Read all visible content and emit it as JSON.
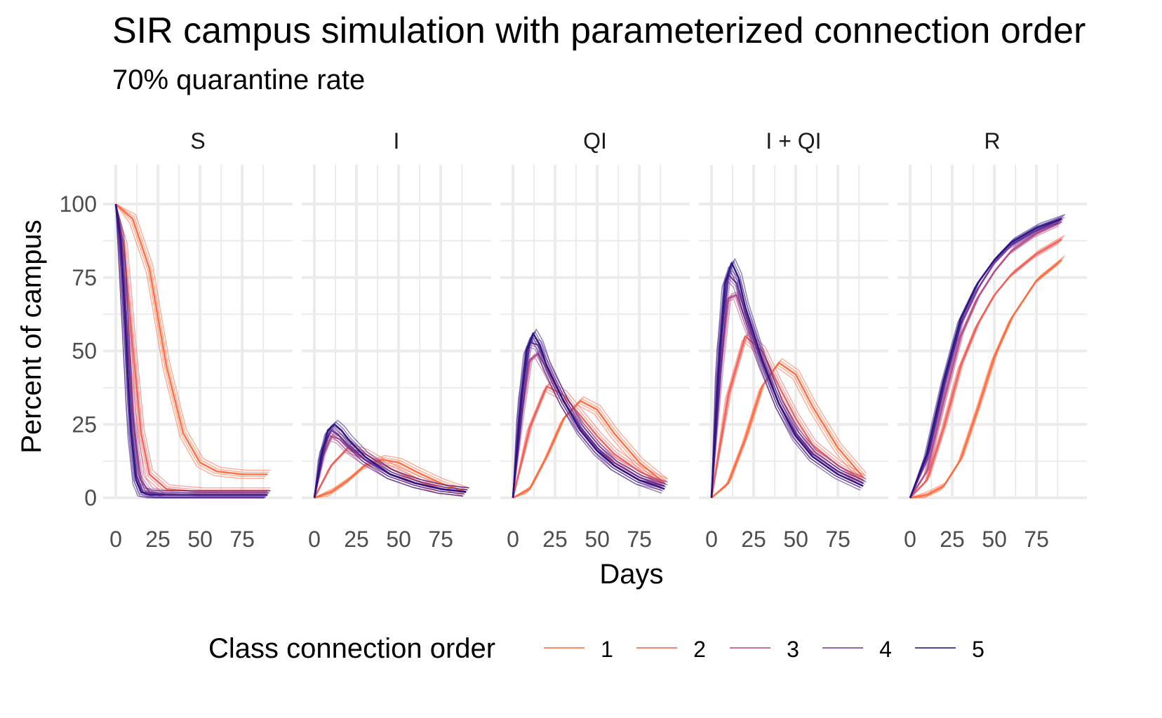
{
  "chart_data": {
    "type": "line",
    "title": "SIR campus simulation with parameterized connection order",
    "subtitle": "70% quarantine rate",
    "xlabel": "Days",
    "ylabel": "Percent of campus",
    "xlim": [
      0,
      90
    ],
    "ylim": [
      0,
      100
    ],
    "x_ticks": [
      "0",
      "25",
      "50",
      "75"
    ],
    "y_ticks": [
      "0",
      "25",
      "50",
      "75",
      "100"
    ],
    "grid": true,
    "facets": [
      "S",
      "I",
      "QI",
      "I + QI",
      "R"
    ],
    "legend": {
      "title": "Class connection order",
      "position": "bottom",
      "entries": [
        "1",
        "2",
        "3",
        "4",
        "5"
      ],
      "colors": [
        "#FF6A3D",
        "#F25E55",
        "#B84E86",
        "#7B3C9C",
        "#2A1384"
      ]
    },
    "series": [
      {
        "name": "1",
        "facet": "S",
        "x": [
          0,
          10,
          20,
          30,
          40,
          50,
          60,
          75,
          90
        ],
        "y": [
          100,
          95,
          78,
          45,
          22,
          12,
          9,
          8,
          8
        ]
      },
      {
        "name": "2",
        "facet": "S",
        "x": [
          0,
          5,
          10,
          15,
          20,
          30,
          50,
          90
        ],
        "y": [
          100,
          85,
          52,
          22,
          8,
          3,
          2,
          2
        ]
      },
      {
        "name": "3",
        "facet": "S",
        "x": [
          0,
          5,
          10,
          15,
          20,
          30,
          90
        ],
        "y": [
          100,
          72,
          28,
          6,
          2,
          1,
          1
        ]
      },
      {
        "name": "4",
        "facet": "S",
        "x": [
          0,
          4,
          8,
          12,
          16,
          25,
          90
        ],
        "y": [
          100,
          78,
          32,
          8,
          2,
          1,
          1
        ]
      },
      {
        "name": "5",
        "facet": "S",
        "x": [
          0,
          3,
          6,
          9,
          12,
          15,
          20,
          90
        ],
        "y": [
          100,
          88,
          55,
          22,
          6,
          2,
          1,
          1
        ]
      },
      {
        "name": "1",
        "facet": "I",
        "x": [
          0,
          10,
          20,
          30,
          40,
          50,
          60,
          75,
          90
        ],
        "y": [
          0,
          2,
          6,
          11,
          13,
          12,
          9,
          5,
          2
        ]
      },
      {
        "name": "2",
        "facet": "I",
        "x": [
          0,
          10,
          20,
          30,
          45,
          60,
          75,
          90
        ],
        "y": [
          0,
          11,
          17,
          15,
          10,
          6,
          3,
          2
        ]
      },
      {
        "name": "3",
        "facet": "I",
        "x": [
          0,
          5,
          10,
          15,
          20,
          30,
          45,
          60,
          75,
          90
        ],
        "y": [
          0,
          14,
          21,
          20,
          17,
          13,
          8,
          5,
          3,
          2
        ]
      },
      {
        "name": "4",
        "facet": "I",
        "x": [
          0,
          5,
          10,
          15,
          20,
          30,
          45,
          60,
          75,
          90
        ],
        "y": [
          0,
          17,
          23,
          21,
          18,
          13,
          8,
          5,
          3,
          2
        ]
      },
      {
        "name": "5",
        "facet": "I",
        "x": [
          0,
          4,
          8,
          12,
          16,
          20,
          30,
          45,
          60,
          75,
          90
        ],
        "y": [
          0,
          14,
          23,
          25,
          23,
          20,
          14,
          8,
          5,
          3,
          2
        ]
      },
      {
        "name": "1",
        "facet": "QI",
        "x": [
          0,
          10,
          20,
          30,
          40,
          50,
          60,
          75,
          90
        ],
        "y": [
          0,
          3,
          14,
          27,
          33,
          30,
          22,
          12,
          5
        ]
      },
      {
        "name": "2",
        "facet": "QI",
        "x": [
          0,
          10,
          20,
          30,
          40,
          50,
          60,
          75,
          90
        ],
        "y": [
          0,
          24,
          38,
          35,
          28,
          21,
          15,
          9,
          5
        ]
      },
      {
        "name": "3",
        "facet": "QI",
        "x": [
          0,
          5,
          10,
          15,
          20,
          30,
          40,
          50,
          60,
          75,
          90
        ],
        "y": [
          0,
          28,
          47,
          49,
          44,
          33,
          24,
          17,
          12,
          7,
          4
        ]
      },
      {
        "name": "4",
        "facet": "QI",
        "x": [
          0,
          5,
          10,
          15,
          20,
          30,
          40,
          50,
          60,
          75,
          90
        ],
        "y": [
          0,
          35,
          53,
          52,
          45,
          33,
          24,
          17,
          11,
          6,
          4
        ]
      },
      {
        "name": "5",
        "facet": "QI",
        "x": [
          0,
          4,
          8,
          12,
          16,
          20,
          30,
          40,
          50,
          60,
          75,
          90
        ],
        "y": [
          0,
          28,
          50,
          56,
          52,
          45,
          33,
          23,
          16,
          11,
          6,
          3
        ]
      },
      {
        "name": "1",
        "facet": "I + QI",
        "x": [
          0,
          10,
          20,
          30,
          40,
          50,
          60,
          75,
          90
        ],
        "y": [
          0,
          5,
          20,
          38,
          46,
          42,
          31,
          17,
          7
        ]
      },
      {
        "name": "2",
        "facet": "I + QI",
        "x": [
          0,
          10,
          20,
          30,
          40,
          50,
          60,
          75,
          90
        ],
        "y": [
          0,
          35,
          55,
          50,
          38,
          27,
          18,
          11,
          6
        ]
      },
      {
        "name": "3",
        "facet": "I + QI",
        "x": [
          0,
          5,
          10,
          15,
          20,
          30,
          40,
          50,
          60,
          75,
          90
        ],
        "y": [
          0,
          42,
          68,
          69,
          61,
          46,
          32,
          22,
          15,
          9,
          5
        ]
      },
      {
        "name": "4",
        "facet": "I + QI",
        "x": [
          0,
          5,
          10,
          15,
          20,
          30,
          40,
          50,
          60,
          75,
          90
        ],
        "y": [
          0,
          52,
          76,
          73,
          63,
          46,
          32,
          22,
          15,
          9,
          5
        ]
      },
      {
        "name": "5",
        "facet": "I + QI",
        "x": [
          0,
          4,
          8,
          12,
          16,
          20,
          30,
          40,
          50,
          60,
          75,
          90
        ],
        "y": [
          0,
          42,
          73,
          80,
          75,
          65,
          47,
          32,
          21,
          14,
          8,
          4
        ]
      },
      {
        "name": "1",
        "facet": "R",
        "x": [
          0,
          10,
          20,
          30,
          40,
          50,
          60,
          75,
          90
        ],
        "y": [
          0,
          1,
          4,
          13,
          30,
          48,
          61,
          74,
          81
        ]
      },
      {
        "name": "2",
        "facet": "R",
        "x": [
          0,
          10,
          20,
          30,
          40,
          50,
          60,
          75,
          90
        ],
        "y": [
          0,
          6,
          24,
          45,
          59,
          69,
          76,
          83,
          88
        ]
      },
      {
        "name": "3",
        "facet": "R",
        "x": [
          0,
          10,
          20,
          30,
          40,
          50,
          60,
          75,
          90
        ],
        "y": [
          0,
          9,
          33,
          55,
          68,
          77,
          84,
          90,
          94
        ]
      },
      {
        "name": "4",
        "facet": "R",
        "x": [
          0,
          10,
          20,
          30,
          40,
          50,
          60,
          75,
          90
        ],
        "y": [
          0,
          13,
          38,
          59,
          71,
          80,
          86,
          91,
          95
        ]
      },
      {
        "name": "5",
        "facet": "R",
        "x": [
          0,
          10,
          20,
          30,
          40,
          50,
          60,
          75,
          90
        ],
        "y": [
          0,
          15,
          40,
          61,
          73,
          81,
          87,
          92,
          95
        ]
      }
    ]
  }
}
